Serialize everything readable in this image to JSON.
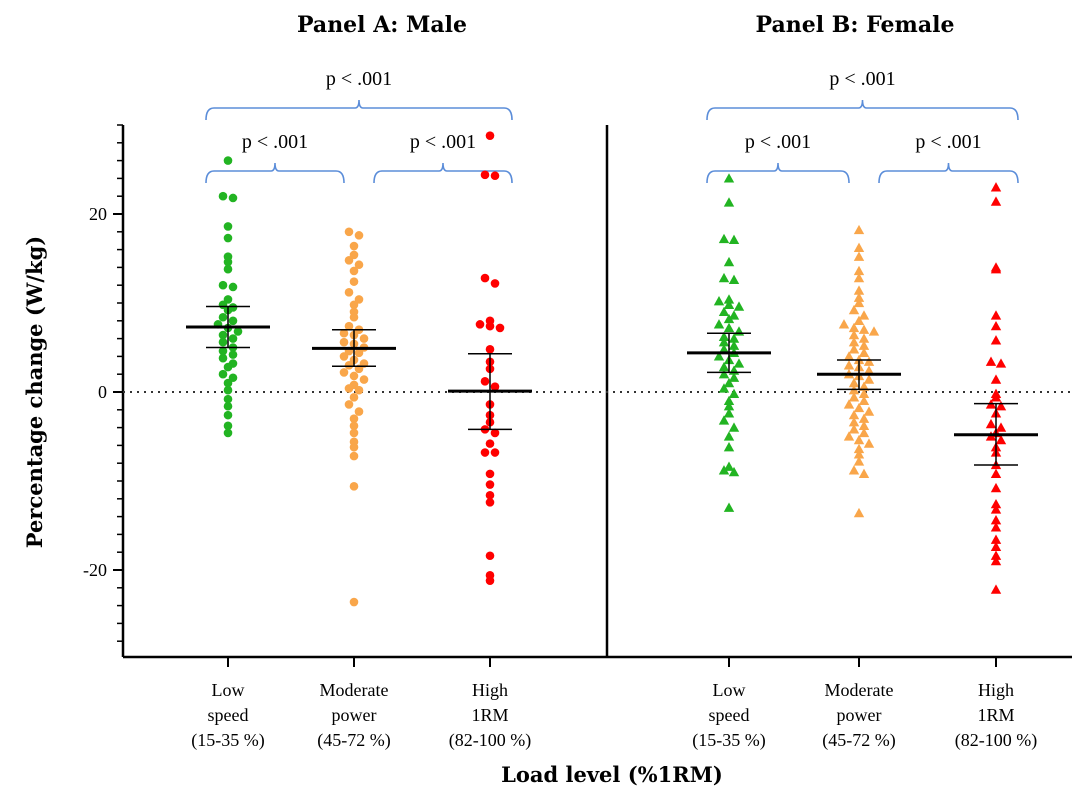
{
  "chart_data": {
    "type": "scatter",
    "ylabel": "Percentage change (W/kg)",
    "xlabel": "Load level (%1RM)",
    "ylim": [
      -30,
      30
    ],
    "y_ticks": [
      "20",
      "0",
      "-20"
    ],
    "reference_line_y": 0,
    "categories": [
      [
        "Low",
        "speed",
        "(15-35 %)"
      ],
      [
        "Moderate",
        "power",
        "(45-72 %)"
      ],
      [
        "High",
        "1RM",
        "(82-100 %)"
      ]
    ],
    "colors": {
      "low": "#22b422",
      "moderate": "#f9a64a",
      "high": "#ff0000",
      "bracket": "#5b8dd9",
      "axis": "#000000"
    },
    "panels": [
      {
        "title": "Panel A: Male",
        "marker": "circle",
        "comparisons": [
          {
            "from": 0,
            "to": 2,
            "label": "p < .001"
          },
          {
            "from": 0,
            "to": 1,
            "label": "p < .001"
          },
          {
            "from": 1,
            "to": 2,
            "label": "p < .001"
          }
        ],
        "groups": [
          {
            "category": 0,
            "mean": 7.3,
            "ci": [
              5.0,
              9.6
            ],
            "values": [
              26,
              22,
              21.8,
              18.6,
              17.3,
              15.2,
              14.6,
              13.8,
              12.0,
              11.8,
              10.4,
              9.8,
              9.5,
              9.2,
              8.4,
              8.0,
              7.6,
              7.2,
              6.8,
              6.4,
              6.0,
              5.6,
              5.0,
              4.6,
              4.2,
              3.8,
              3.2,
              2.8,
              2.0,
              1.6,
              1.0,
              0.2,
              -0.8,
              -1.6,
              -2.6,
              -3.8,
              -4.6
            ]
          },
          {
            "category": 1,
            "mean": 4.9,
            "ci": [
              2.9,
              7.0
            ],
            "values": [
              18,
              17.6,
              16.4,
              15.4,
              14.8,
              14.3,
              13.6,
              12.4,
              11.2,
              10.4,
              9.8,
              9.0,
              8.4,
              7.4,
              7.0,
              6.6,
              6.4,
              6.0,
              5.6,
              5.4,
              5.0,
              4.6,
              4.4,
              4.0,
              3.6,
              3.2,
              3.0,
              2.6,
              2.2,
              1.8,
              1.4,
              0.8,
              0.4,
              0.2,
              -0.6,
              -1.4,
              -2.2,
              -3.0,
              -3.8,
              -4.6,
              -5.6,
              -6.2,
              -7.2,
              -10.6,
              -23.6
            ]
          },
          {
            "category": 2,
            "mean": 0.1,
            "ci": [
              -4.2,
              4.3
            ],
            "values": [
              28.8,
              24.4,
              24.3,
              12.8,
              12.2,
              8.0,
              7.6,
              7.4,
              7.2,
              4.8,
              3.4,
              2.6,
              1.2,
              0.6,
              -1.4,
              -2.6,
              -3.4,
              -4.2,
              -4.6,
              -5.8,
              -6.8,
              -6.8,
              -9.2,
              -10.4,
              -11.6,
              -12.4,
              -18.4,
              -20.6,
              -21.2
            ]
          }
        ]
      },
      {
        "title": "Panel B: Female",
        "marker": "triangle",
        "comparisons": [
          {
            "from": 0,
            "to": 2,
            "label": "p < .001"
          },
          {
            "from": 0,
            "to": 1,
            "label": "p < .001"
          },
          {
            "from": 1,
            "to": 2,
            "label": "p < .001"
          }
        ],
        "groups": [
          {
            "category": 0,
            "mean": 4.4,
            "ci": [
              2.2,
              6.6
            ],
            "values": [
              24,
              21.3,
              17.2,
              17.1,
              14.6,
              12.8,
              12.6,
              10.4,
              10.2,
              9.8,
              9.6,
              9.0,
              8.6,
              8.2,
              7.6,
              7.2,
              6.8,
              6.2,
              6.0,
              5.6,
              5.2,
              4.8,
              4.4,
              4.0,
              3.6,
              3.2,
              2.8,
              2.4,
              2.0,
              1.6,
              1.0,
              0.4,
              -0.2,
              -1.0,
              -1.6,
              -2.4,
              -3.2,
              -4.0,
              -5.0,
              -6.2,
              -8.4,
              -8.8,
              -9.0,
              -13.0
            ]
          },
          {
            "category": 1,
            "mean": 2.0,
            "ci": [
              0.3,
              3.6
            ],
            "values": [
              18.2,
              16.2,
              15.2,
              13.6,
              12.8,
              11.4,
              10.6,
              10.0,
              9.2,
              8.6,
              8.0,
              7.6,
              7.2,
              7.0,
              6.8,
              6.4,
              6.0,
              5.6,
              5.2,
              4.8,
              4.4,
              4.0,
              3.6,
              3.4,
              3.0,
              2.8,
              2.4,
              2.0,
              1.8,
              1.4,
              1.0,
              0.6,
              0.2,
              -0.2,
              -0.6,
              -1.0,
              -1.4,
              -1.8,
              -2.2,
              -2.6,
              -3.0,
              -3.4,
              -3.8,
              -4.2,
              -4.6,
              -5.0,
              -5.4,
              -5.8,
              -6.4,
              -7.0,
              -7.8,
              -8.8,
              -9.2,
              -13.6
            ]
          },
          {
            "category": 2,
            "mean": -4.8,
            "ci": [
              -8.2,
              -1.3
            ],
            "values": [
              23.0,
              21.4,
              14.0,
              13.8,
              8.6,
              7.4,
              5.8,
              3.4,
              3.2,
              1.4,
              -0.2,
              -0.6,
              -1.4,
              -1.6,
              -2.4,
              -3.6,
              -4.0,
              -4.6,
              -5.0,
              -5.4,
              -6.2,
              -6.8,
              -8.2,
              -9.2,
              -10.8,
              -12.6,
              -13.2,
              -14.4,
              -15.2,
              -16.6,
              -17.4,
              -18.4,
              -19.0,
              -22.2
            ]
          }
        ]
      }
    ]
  }
}
